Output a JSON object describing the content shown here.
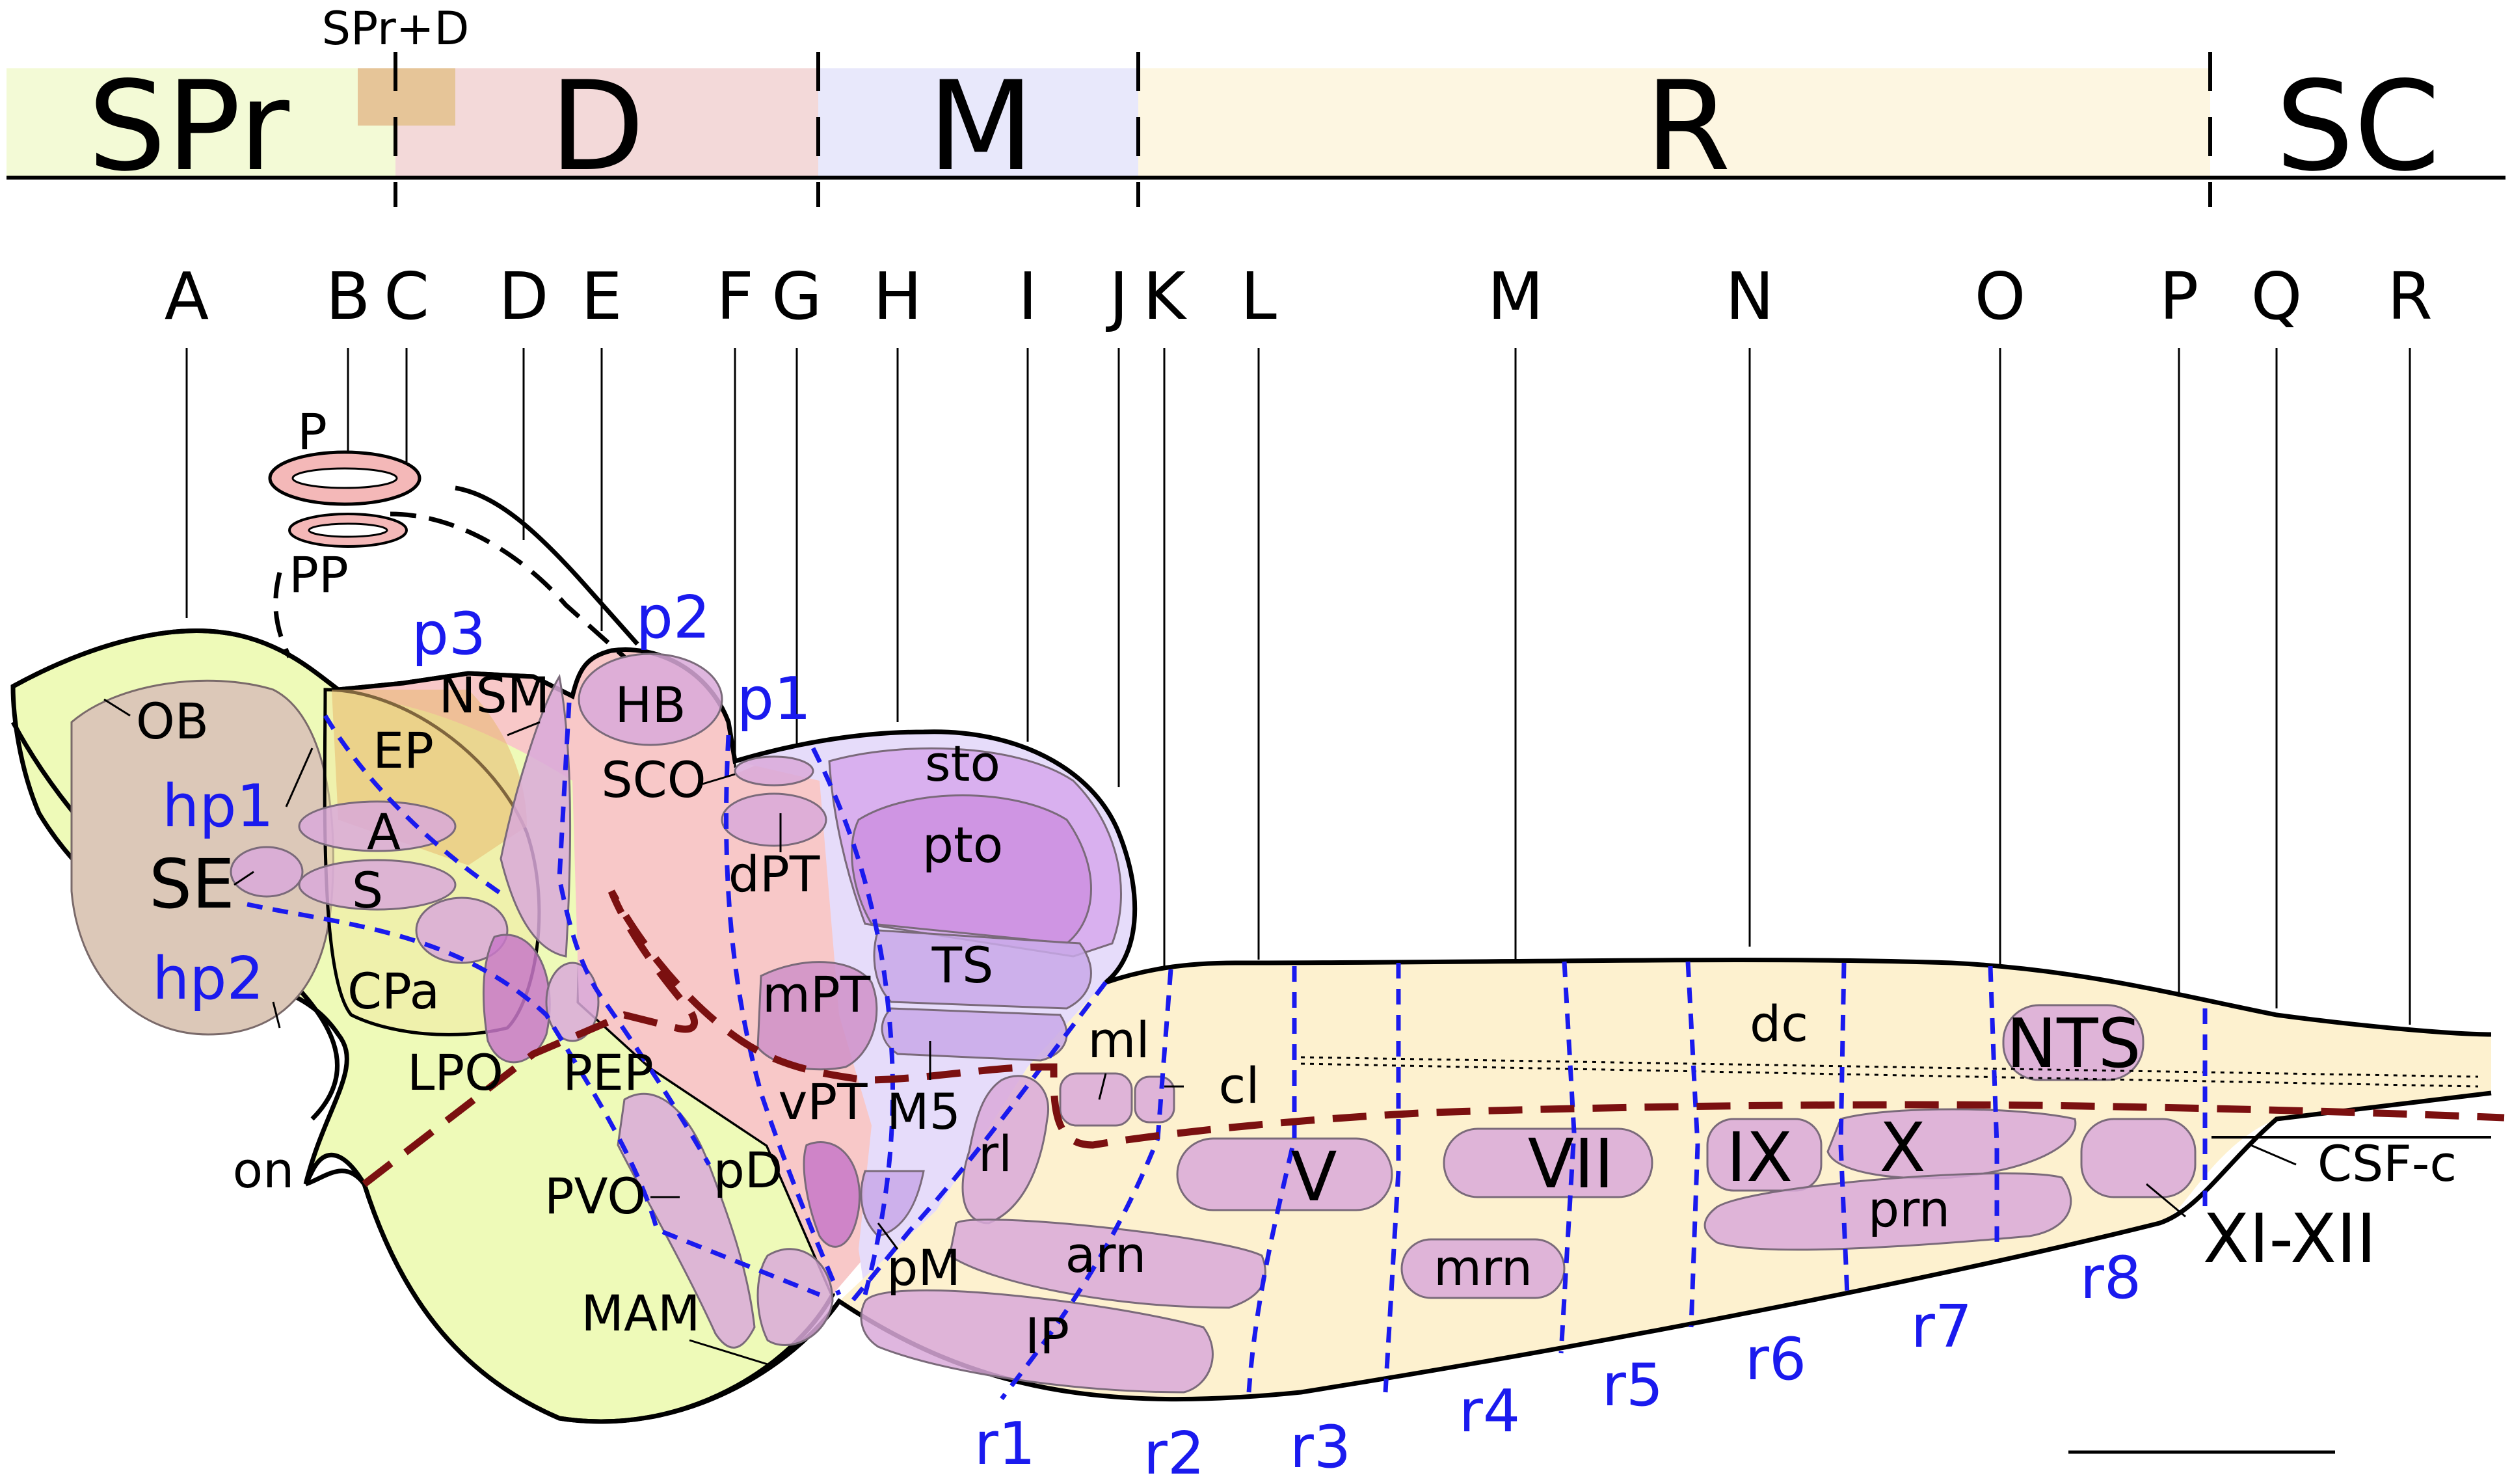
{
  "top_bar": {
    "overlap_label": "SPr+D",
    "regions": [
      {
        "id": "spr",
        "label": "SPr",
        "color": "#f3fad6"
      },
      {
        "id": "d",
        "label": "D",
        "color": "#f3d9d9"
      },
      {
        "id": "m",
        "label": "M",
        "color": "#e8e8fb"
      },
      {
        "id": "r",
        "label": "R",
        "color": "#fdf6e1"
      },
      {
        "id": "sc",
        "label": "SC",
        "color": "#ffffff"
      }
    ]
  },
  "section_labels": [
    "A",
    "B",
    "C",
    "D",
    "E",
    "F",
    "G",
    "H",
    "I",
    "J",
    "K",
    "L",
    "M",
    "N",
    "O",
    "P",
    "Q",
    "R"
  ],
  "prosomere_labels": {
    "p3": "p3",
    "p2": "p2",
    "p1": "p1",
    "hp1": "hp1",
    "hp2": "hp2"
  },
  "rhombomere_labels": [
    "r1",
    "r2",
    "r3",
    "r4",
    "r5",
    "r6",
    "r7",
    "r8"
  ],
  "structures": {
    "P": "P",
    "PP": "PP",
    "OB": "OB",
    "EP": "EP",
    "NSM": "NSM",
    "HB": "HB",
    "SCO": "SCO",
    "sto": "sto",
    "pto": "pto",
    "dPT": "dPT",
    "A": "A",
    "S": "S",
    "SE": "SE",
    "CPa": "CPa",
    "TS": "TS",
    "mPT": "mPT",
    "LPO": "LPO",
    "PEP": "PEP",
    "M5": "M5",
    "ml": "ml",
    "cl": "cl",
    "vPT": "vPT",
    "rl": "rl",
    "on": "on",
    "PVO": "PVO",
    "pD": "pD",
    "arn": "arn",
    "pM": "pM",
    "MAM": "MAM",
    "IP": "IP",
    "V": "V",
    "VII": "VII",
    "mrn": "mrn",
    "IX": "IX",
    "X": "X",
    "prn": "prn",
    "dc": "dc",
    "NTS": "NTS",
    "CSF-c": "CSF-c",
    "XI-XII": "XI-XII"
  },
  "colors": {
    "secondary_prosencephalon": "#eefab8",
    "diencephalon": "#f8c8c8",
    "mesencephalon": "#d8c4f4",
    "rhombencephalon": "#fdf1cf",
    "nucleus": "#d9a9d9",
    "olfactory_bulb": "#dcc8b8",
    "prosomere_boundary": "#1a1aee",
    "alar_basal_boundary": "#7b1010"
  }
}
